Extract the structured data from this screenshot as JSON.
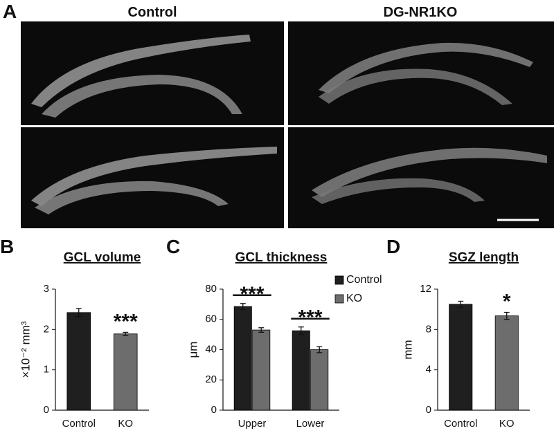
{
  "figure": {
    "panel_a": {
      "letter": "A",
      "columns": [
        "Control",
        "DG-NR1KO"
      ]
    }
  },
  "chart_data": [
    {
      "type": "bar",
      "letter": "B",
      "title": "GCL volume",
      "y_label": "×10⁻² mm³",
      "categories": [
        "Control",
        "KO"
      ],
      "values": [
        2.42,
        1.89
      ],
      "errors": [
        0.1,
        0.04
      ],
      "colors": [
        "#1f1f1f",
        "#6d6d6d"
      ],
      "significance": [
        null,
        "***"
      ],
      "ylim": [
        0,
        3
      ],
      "yticks": [
        0,
        1,
        2,
        3
      ]
    },
    {
      "type": "grouped-bar",
      "letter": "C",
      "title": "GCL thickness",
      "y_label": "μm",
      "categories": [
        "Upper",
        "Lower"
      ],
      "series": [
        {
          "name": "Control",
          "color": "#1f1f1f",
          "values": [
            68.5,
            52.5
          ],
          "errors": [
            2,
            2.5
          ]
        },
        {
          "name": "KO",
          "color": "#6d6d6d",
          "values": [
            53,
            40
          ],
          "errors": [
            1.5,
            2
          ]
        }
      ],
      "significance": [
        "***",
        "***"
      ],
      "legend": "top-right",
      "ylim": [
        0,
        80
      ],
      "yticks": [
        0,
        20,
        40,
        60,
        80
      ]
    },
    {
      "type": "bar",
      "letter": "D",
      "title": "SGZ length",
      "y_label": "mm",
      "categories": [
        "Control",
        "KO"
      ],
      "values": [
        10.5,
        9.35
      ],
      "errors": [
        0.3,
        0.35
      ],
      "colors": [
        "#1f1f1f",
        "#6d6d6d"
      ],
      "significance": [
        null,
        "*"
      ],
      "ylim": [
        0,
        12
      ],
      "yticks": [
        0,
        4,
        8,
        12
      ]
    }
  ]
}
